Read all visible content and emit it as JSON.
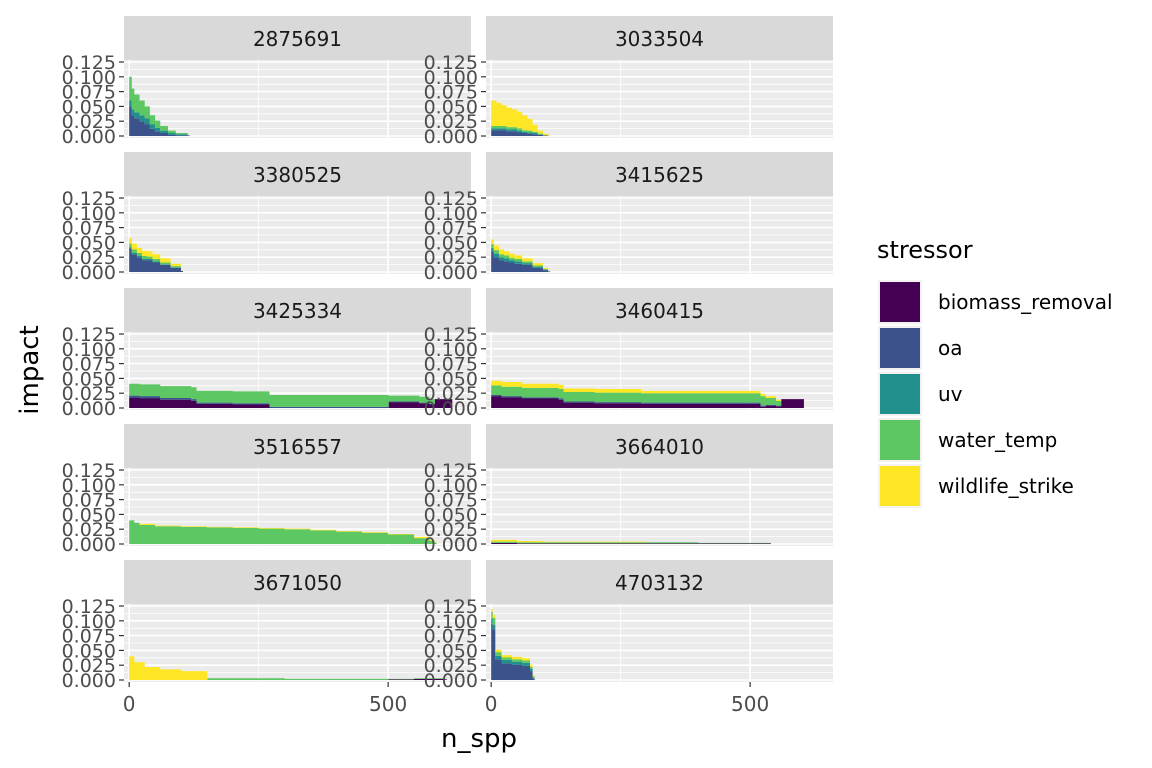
{
  "chart_data": {
    "type": "area",
    "layout": "facet-wrap-2-columns",
    "xlabel": "n_spp",
    "ylabel": "impact",
    "xlim": [
      -10,
      660
    ],
    "ylim": [
      0,
      0.125
    ],
    "x_ticks": [
      0,
      500
    ],
    "x_tick_labels": [
      "0",
      "500"
    ],
    "y_ticks": [
      0,
      0.025,
      0.05,
      0.075,
      0.1,
      0.125
    ],
    "y_tick_labels": [
      "0.000",
      "0.025",
      "0.050",
      "0.075",
      "0.100",
      "0.125"
    ],
    "grid": true,
    "legend": {
      "title": "stressor",
      "placement": "right",
      "entries": [
        {
          "name": "biomass_removal",
          "color": "#440154"
        },
        {
          "name": "oa",
          "color": "#3B528B"
        },
        {
          "name": "uv",
          "color": "#21908C"
        },
        {
          "name": "water_temp",
          "color": "#5DC863"
        },
        {
          "name": "wildlife_strike",
          "color": "#FDE725"
        }
      ]
    },
    "stressor_order": [
      "biomass_removal",
      "oa",
      "uv",
      "water_temp",
      "wildlife_strike"
    ],
    "panels": [
      {
        "id": "2875691",
        "profiles": [
          {
            "x": [
              0,
              5,
              10,
              20,
              30,
              40,
              50,
              60,
              75,
              90,
              113
            ],
            "values": {
              "biomass_removal": [
                0,
                0,
                0,
                0,
                0,
                0,
                0,
                0,
                0,
                0,
                0
              ],
              "oa": [
                0.05,
                0.035,
                0.03,
                0.025,
                0.02,
                0.012,
                0.008,
                0.005,
                0.002,
                0.001,
                0.001
              ],
              "uv": [
                0.01,
                0.01,
                0.01,
                0.01,
                0.01,
                0.008,
                0.006,
                0.004,
                0.003,
                0.002,
                0
              ],
              "water_temp": [
                0.04,
                0.035,
                0.03,
                0.025,
                0.02,
                0.015,
                0.012,
                0.008,
                0.004,
                0.002,
                0
              ],
              "wildlife_strike": [
                0,
                0,
                0,
                0,
                0,
                0,
                0,
                0,
                0,
                0,
                0
              ]
            }
          }
        ]
      },
      {
        "id": "3033504",
        "profiles": [
          {
            "x": [
              0,
              10,
              20,
              30,
              40,
              50,
              60,
              70,
              80,
              90,
              100,
              110
            ],
            "values": {
              "biomass_removal": [
                0,
                0,
                0,
                0,
                0,
                0,
                0,
                0,
                0,
                0,
                0,
                0
              ],
              "oa": [
                0.01,
                0.01,
                0.01,
                0.008,
                0.008,
                0.006,
                0.005,
                0.004,
                0.003,
                0.002,
                0.001,
                0
              ],
              "uv": [
                0.003,
                0.003,
                0.003,
                0.003,
                0.003,
                0.003,
                0.002,
                0.002,
                0.002,
                0.001,
                0,
                0
              ],
              "water_temp": [
                0.004,
                0.004,
                0.004,
                0.004,
                0.004,
                0.004,
                0.003,
                0.003,
                0.002,
                0.001,
                0,
                0
              ],
              "wildlife_strike": [
                0.043,
                0.039,
                0.035,
                0.033,
                0.03,
                0.028,
                0.025,
                0.02,
                0.012,
                0.005,
                0.003,
                0.001
              ]
            }
          }
        ]
      },
      {
        "id": "3380525",
        "profiles": [
          {
            "x": [
              0,
              5,
              15,
              25,
              35,
              45,
              60,
              80,
              100
            ],
            "values": {
              "biomass_removal": [
                0,
                0,
                0,
                0,
                0,
                0,
                0,
                0,
                0
              ],
              "oa": [
                0.04,
                0.03,
                0.025,
                0.02,
                0.02,
                0.016,
                0.012,
                0.007,
                0.002
              ],
              "uv": [
                0.002,
                0.002,
                0.002,
                0.002,
                0.002,
                0.002,
                0.001,
                0.001,
                0
              ],
              "water_temp": [
                0.006,
                0.006,
                0.005,
                0.005,
                0.004,
                0.004,
                0.003,
                0.002,
                0
              ],
              "wildlife_strike": [
                0.01,
                0.01,
                0.009,
                0.009,
                0.009,
                0.008,
                0.007,
                0.004,
                0.001
              ]
            }
          }
        ]
      },
      {
        "id": "3415625",
        "profiles": [
          {
            "x": [
              0,
              5,
              15,
              25,
              35,
              45,
              60,
              80,
              100,
              110
            ],
            "values": {
              "biomass_removal": [
                0,
                0,
                0,
                0,
                0,
                0,
                0,
                0,
                0,
                0
              ],
              "oa": [
                0.035,
                0.025,
                0.02,
                0.018,
                0.016,
                0.014,
                0.012,
                0.007,
                0.003,
                0.001
              ],
              "uv": [
                0.006,
                0.006,
                0.005,
                0.005,
                0.004,
                0.004,
                0.003,
                0.002,
                0.001,
                0
              ],
              "water_temp": [
                0.006,
                0.006,
                0.005,
                0.005,
                0.004,
                0.004,
                0.003,
                0.002,
                0.001,
                0
              ],
              "wildlife_strike": [
                0.008,
                0.008,
                0.008,
                0.007,
                0.007,
                0.006,
                0.005,
                0.004,
                0.002,
                0.001
              ]
            }
          }
        ]
      },
      {
        "id": "3425334",
        "profiles": [
          {
            "x": [
              0,
              20,
              60,
              120,
              130,
              200,
              270,
              271,
              500,
              501,
              560,
              580,
              590,
              620
            ],
            "values": {
              "biomass_removal": [
                0.017,
                0.016,
                0.014,
                0.012,
                0.007,
                0.006,
                0.005,
                0,
                0,
                0.01,
                0.008,
                0.006,
                0.015,
                0.015
              ],
              "oa": [
                0.004,
                0.004,
                0.003,
                0.003,
                0.002,
                0.002,
                0.002,
                0.002,
                0.002,
                0.001,
                0.001,
                0.001,
                0,
                0
              ],
              "uv": [
                0,
                0,
                0,
                0,
                0,
                0,
                0,
                0,
                0,
                0,
                0,
                0,
                0,
                0
              ],
              "water_temp": [
                0.02,
                0.02,
                0.02,
                0.02,
                0.02,
                0.02,
                0.02,
                0.02,
                0.02,
                0.01,
                0.01,
                0.008,
                0,
                0
              ],
              "wildlife_strike": [
                0,
                0,
                0,
                0,
                0,
                0,
                0,
                0,
                0,
                0,
                0,
                0,
                0,
                0
              ]
            }
          }
        ]
      },
      {
        "id": "3460415",
        "profiles": [
          {
            "x": [
              0,
              20,
              60,
              130,
              140,
              200,
              290,
              520,
              530,
              550,
              560,
              600
            ],
            "values": {
              "biomass_removal": [
                0.02,
                0.018,
                0.016,
                0.014,
                0.009,
                0.008,
                0.007,
                0.002,
                0.004,
                0.003,
                0.015,
                0.015
              ],
              "oa": [
                0.002,
                0.002,
                0.002,
                0.002,
                0.002,
                0.002,
                0.002,
                0.002,
                0.001,
                0.001,
                0,
                0
              ],
              "uv": [
                0,
                0,
                0,
                0,
                0,
                0,
                0,
                0,
                0,
                0,
                0,
                0
              ],
              "water_temp": [
                0.016,
                0.016,
                0.016,
                0.016,
                0.016,
                0.016,
                0.016,
                0.016,
                0.012,
                0.008,
                0,
                0
              ],
              "wildlife_strike": [
                0.008,
                0.008,
                0.007,
                0.007,
                0.006,
                0.006,
                0.004,
                0.004,
                0.003,
                0.002,
                0,
                0
              ]
            }
          }
        ]
      },
      {
        "id": "3516557",
        "profiles": [
          {
            "x": [
              0,
              10,
              20,
              50,
              100,
              150,
              200,
              250,
              300,
              350,
              400,
              450,
              500,
              550,
              580,
              590
            ],
            "values": {
              "biomass_removal": [
                0,
                0,
                0,
                0,
                0,
                0,
                0,
                0,
                0,
                0,
                0,
                0,
                0,
                0,
                0,
                0
              ],
              "oa": [
                0,
                0,
                0,
                0,
                0,
                0,
                0,
                0,
                0,
                0,
                0,
                0,
                0,
                0,
                0,
                0
              ],
              "uv": [
                0,
                0,
                0,
                0,
                0,
                0,
                0,
                0,
                0,
                0,
                0,
                0,
                0,
                0,
                0,
                0
              ],
              "water_temp": [
                0.04,
                0.036,
                0.032,
                0.03,
                0.029,
                0.028,
                0.027,
                0.026,
                0.025,
                0.023,
                0.021,
                0.019,
                0.016,
                0.01,
                0.005,
                0.002
              ],
              "wildlife_strike": [
                0,
                0,
                0.002,
                0.001,
                0.001,
                0.001,
                0.001,
                0.001,
                0.001,
                0.001,
                0.001,
                0.001,
                0.001,
                0.002,
                0.002,
                0.001
              ]
            }
          }
        ]
      },
      {
        "id": "3664010",
        "profiles": [
          {
            "x": [
              0,
              20,
              50,
              100,
              200,
              300,
              400,
              500,
              540
            ],
            "values": {
              "biomass_removal": [
                0.002,
                0.002,
                0.001,
                0.001,
                0.001,
                0.001,
                0.001,
                0.001,
                0
              ],
              "oa": [
                0,
                0,
                0,
                0,
                0,
                0,
                0,
                0,
                0
              ],
              "uv": [
                0,
                0,
                0,
                0,
                0,
                0,
                0,
                0,
                0
              ],
              "water_temp": [
                0.002,
                0.002,
                0.002,
                0.002,
                0.002,
                0.002,
                0.001,
                0.001,
                0
              ],
              "wildlife_strike": [
                0.003,
                0.003,
                0.002,
                0.001,
                0.001,
                0,
                0,
                0,
                0
              ]
            }
          }
        ]
      },
      {
        "id": "3671050",
        "profiles": [
          {
            "x": [
              0,
              10,
              30,
              60,
              100,
              150,
              151,
              300,
              500,
              550,
              610
            ],
            "values": {
              "biomass_removal": [
                0,
                0,
                0,
                0,
                0,
                0,
                0,
                0,
                0.001,
                0.002,
                0.001
              ],
              "oa": [
                0,
                0,
                0,
                0,
                0,
                0,
                0,
                0,
                0,
                0,
                0
              ],
              "uv": [
                0,
                0,
                0,
                0,
                0,
                0,
                0,
                0,
                0,
                0,
                0
              ],
              "water_temp": [
                0,
                0,
                0,
                0,
                0,
                0,
                0.003,
                0.002,
                0.001,
                0.001,
                0
              ],
              "wildlife_strike": [
                0.04,
                0.03,
                0.022,
                0.018,
                0.015,
                0.013,
                0,
                0,
                0,
                0,
                0
              ]
            }
          }
        ]
      },
      {
        "id": "4703132",
        "profiles": [
          {
            "x": [
              0,
              3,
              8,
              20,
              40,
              60,
              75,
              80
            ],
            "values": {
              "biomass_removal": [
                0,
                0,
                0,
                0,
                0,
                0,
                0,
                0
              ],
              "oa": [
                0.095,
                0.085,
                0.035,
                0.028,
                0.026,
                0.024,
                0.015,
                0.002
              ],
              "uv": [
                0.008,
                0.008,
                0.006,
                0.006,
                0.005,
                0.005,
                0.004,
                0.002
              ],
              "water_temp": [
                0.012,
                0.012,
                0.006,
                0.004,
                0.004,
                0.004,
                0.003,
                0.002
              ],
              "wildlife_strike": [
                0.005,
                0.005,
                0.004,
                0.004,
                0.004,
                0.004,
                0.004,
                0.002
              ]
            }
          }
        ]
      }
    ]
  }
}
